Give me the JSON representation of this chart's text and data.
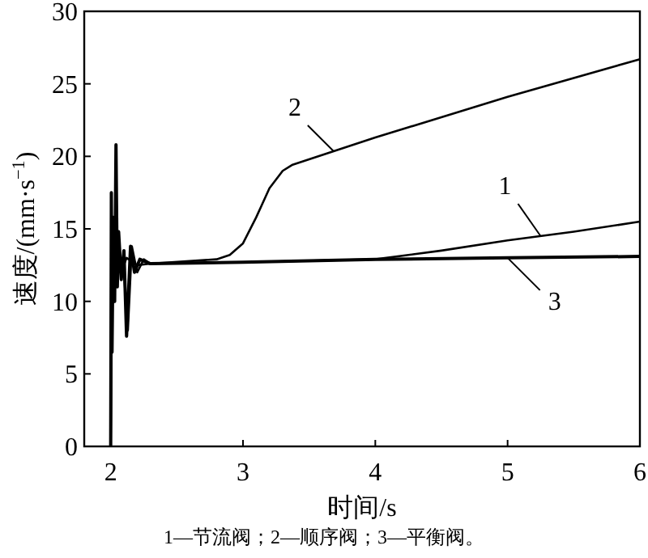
{
  "chart_data": {
    "type": "line",
    "xlabel": "时间/s",
    "ylabel": "速度/(mm·s$^{−1}$)",
    "annotations": [
      "1—节流阀；2—顺序阀；3—平衡阀。"
    ],
    "xlim": [
      1.8,
      6
    ],
    "ylim": [
      0,
      30
    ],
    "xticks": [
      2,
      3,
      4,
      5,
      6
    ],
    "yticks": [
      0,
      5,
      10,
      15,
      20,
      25,
      30
    ],
    "grid": false,
    "marker": "none",
    "line_style": "solid",
    "series": [
      {
        "name": "1",
        "color": "#000000",
        "x": [
          2.0,
          2.005,
          2.01,
          2.02,
          2.03,
          2.05,
          2.08,
          2.12,
          2.2,
          2.3,
          3.0,
          4.0,
          4.5,
          5.0,
          5.5,
          6.0
        ],
        "values": [
          0,
          15,
          8,
          14,
          11,
          13.5,
          12,
          13,
          12.5,
          12.6,
          12.7,
          12.9,
          13.5,
          14.2,
          14.8,
          15.5
        ]
      },
      {
        "name": "2",
        "color": "#000000",
        "x": [
          2.0,
          2.01,
          2.03,
          2.06,
          2.1,
          2.13,
          2.16,
          2.2,
          2.25,
          2.3,
          2.8,
          2.9,
          3.0,
          3.1,
          3.2,
          3.3,
          3.37,
          4.0,
          5.0,
          6.0
        ],
        "values": [
          0,
          12,
          14,
          13,
          12,
          8,
          13.8,
          12,
          12.9,
          12.6,
          12.9,
          13.2,
          14,
          15.8,
          17.8,
          19,
          19.4,
          21.3,
          24.1,
          26.7
        ]
      },
      {
        "name": "3",
        "color": "#000000",
        "x": [
          2.0,
          2.005,
          2.01,
          2.02,
          2.03,
          2.04,
          2.05,
          2.06,
          2.08,
          2.1,
          2.12,
          2.15,
          2.18,
          2.22,
          2.3,
          3.0,
          4.0,
          5.0,
          6.0
        ],
        "values": [
          0,
          17.5,
          6.5,
          15.8,
          10,
          20.8,
          11,
          14.8,
          11.5,
          13.5,
          7.6,
          13.8,
          12,
          12.9,
          12.6,
          12.7,
          12.9,
          13.0,
          13.1
        ]
      }
    ]
  }
}
